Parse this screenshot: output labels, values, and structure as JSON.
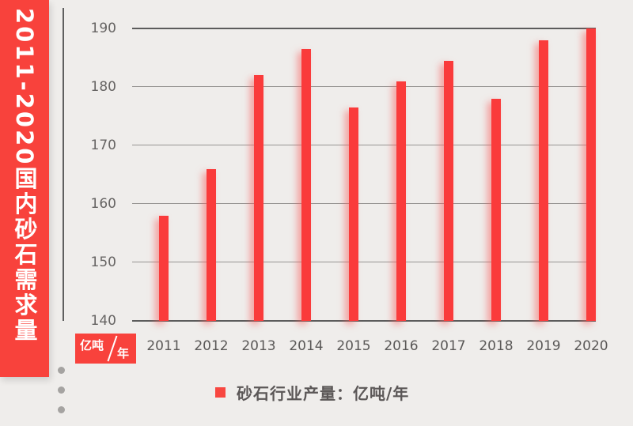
{
  "colors": {
    "background": "#efedeb",
    "accent_red": "#f8423c",
    "bar_red": "#fa3b3b",
    "grid_gray": "#979593",
    "axis_dark": "#5c5c5c",
    "text_gray": "#5a5857"
  },
  "banner": {
    "title": "2011-2020国内砂石需求量"
  },
  "axis_unit_badge": {
    "numerator": "亿吨",
    "denominator": "年",
    "combined": "亿吨/年"
  },
  "legend": {
    "label": "砂石行业产量：亿吨/年",
    "marker_color": "#f84740"
  },
  "decor": {
    "dots_count": 3
  },
  "chart_data": {
    "type": "bar",
    "title": "2011-2020国内砂石需求量",
    "categories": [
      "2011",
      "2012",
      "2013",
      "2014",
      "2015",
      "2016",
      "2017",
      "2018",
      "2019",
      "2020"
    ],
    "values": [
      158,
      166,
      182,
      186.5,
      176.5,
      181,
      184.5,
      178,
      188,
      190
    ],
    "series_name": "砂石行业产量",
    "unit": "亿吨/年",
    "xlabel": "",
    "ylabel": "亿吨/年",
    "ylim": [
      140,
      190
    ],
    "yticks": [
      140,
      150,
      160,
      170,
      180,
      190
    ],
    "grid": true,
    "legend_position": "bottom",
    "bar_color": "#fa3b3b"
  }
}
